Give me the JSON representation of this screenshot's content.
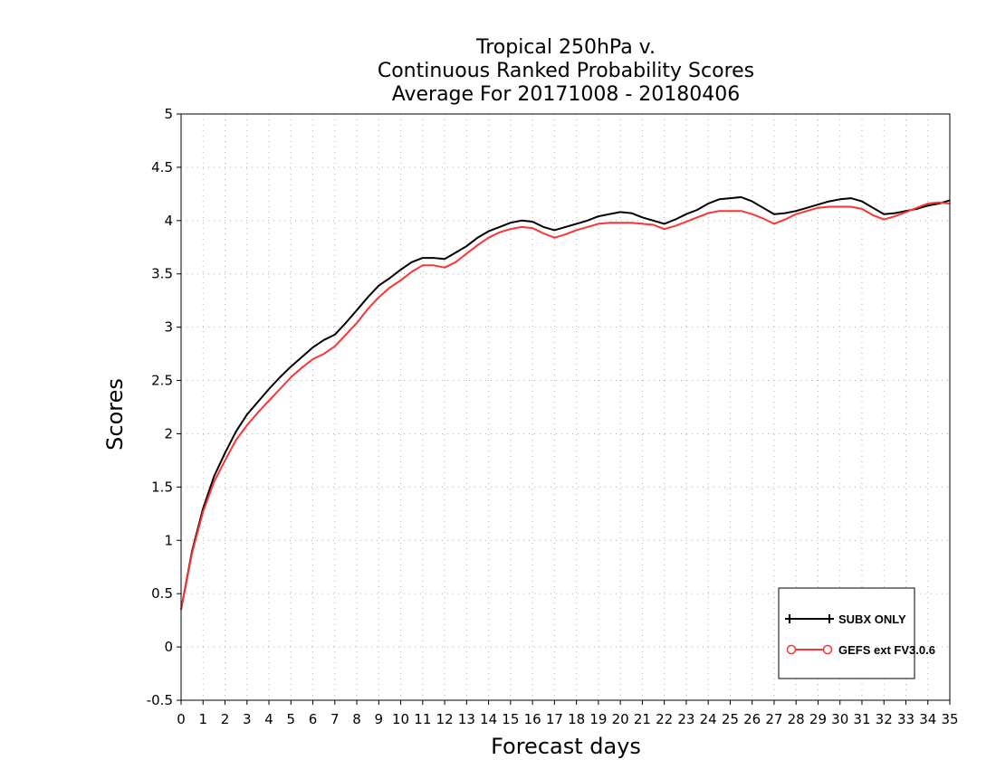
{
  "chart_data": {
    "type": "line",
    "title": [
      "Tropical 250hPa v.",
      "Continuous Ranked Probability Scores",
      "Average For 20171008 - 20180406"
    ],
    "xlabel": "Forecast days",
    "ylabel": "Scores",
    "xlim": [
      0,
      35
    ],
    "ylim": [
      -0.5,
      5
    ],
    "xticks": [
      0,
      1,
      2,
      3,
      4,
      5,
      6,
      7,
      8,
      9,
      10,
      11,
      12,
      13,
      14,
      15,
      16,
      17,
      18,
      19,
      20,
      21,
      22,
      23,
      24,
      25,
      26,
      27,
      28,
      29,
      30,
      31,
      32,
      33,
      34,
      35
    ],
    "yticks": [
      -0.5,
      0,
      0.5,
      1,
      1.5,
      2,
      2.5,
      3,
      3.5,
      4,
      4.5,
      5
    ],
    "ytick_labels": [
      "-0.5",
      "0",
      "0.5",
      "1",
      "1.5",
      "2",
      "2.5",
      "3",
      "3.5",
      "4",
      "4.5",
      "5"
    ],
    "grid": true,
    "legend_position": "bottom-right",
    "x": [
      0,
      0.5,
      1,
      1.5,
      2,
      2.5,
      3,
      3.5,
      4,
      4.5,
      5,
      5.5,
      6,
      6.5,
      7,
      7.5,
      8,
      8.5,
      9,
      9.5,
      10,
      10.5,
      11,
      11.5,
      12,
      12.5,
      13,
      13.5,
      14,
      14.5,
      15,
      15.5,
      16,
      16.5,
      17,
      17.5,
      18,
      18.5,
      19,
      19.5,
      20,
      20.5,
      21,
      21.5,
      22,
      22.5,
      23,
      23.5,
      24,
      24.5,
      25,
      25.5,
      26,
      26.5,
      27,
      27.5,
      28,
      28.5,
      29,
      29.5,
      30,
      30.5,
      31,
      31.5,
      32,
      32.5,
      33,
      33.5,
      34,
      34.5,
      35
    ],
    "series": [
      {
        "name": "SUBX ONLY",
        "color": "#000000",
        "marker": "plus",
        "values": [
          0.35,
          0.9,
          1.3,
          1.6,
          1.82,
          2.02,
          2.18,
          2.3,
          2.42,
          2.53,
          2.63,
          2.72,
          2.81,
          2.88,
          2.93,
          3.04,
          3.16,
          3.28,
          3.39,
          3.46,
          3.54,
          3.61,
          3.65,
          3.65,
          3.64,
          3.7,
          3.76,
          3.84,
          3.9,
          3.94,
          3.98,
          4.0,
          3.99,
          3.94,
          3.91,
          3.94,
          3.97,
          4.0,
          4.04,
          4.06,
          4.08,
          4.07,
          4.03,
          4.0,
          3.97,
          4.01,
          4.06,
          4.1,
          4.16,
          4.2,
          4.21,
          4.22,
          4.18,
          4.12,
          4.06,
          4.07,
          4.09,
          4.12,
          4.15,
          4.18,
          4.2,
          4.21,
          4.18,
          4.12,
          4.06,
          4.07,
          4.09,
          4.11,
          4.14,
          4.16,
          4.19
        ]
      },
      {
        "name": "GEFS ext FV3.0.6",
        "color": "#ff3333",
        "marker": "circle",
        "values": [
          0.35,
          0.88,
          1.27,
          1.55,
          1.75,
          1.94,
          2.08,
          2.2,
          2.31,
          2.42,
          2.53,
          2.62,
          2.7,
          2.75,
          2.82,
          2.93,
          3.04,
          3.17,
          3.28,
          3.37,
          3.44,
          3.52,
          3.58,
          3.58,
          3.56,
          3.61,
          3.69,
          3.77,
          3.84,
          3.89,
          3.92,
          3.94,
          3.93,
          3.88,
          3.84,
          3.87,
          3.91,
          3.94,
          3.97,
          3.98,
          3.98,
          3.98,
          3.97,
          3.96,
          3.92,
          3.95,
          3.99,
          4.03,
          4.07,
          4.09,
          4.09,
          4.09,
          4.06,
          4.02,
          3.97,
          4.01,
          4.06,
          4.09,
          4.12,
          4.13,
          4.13,
          4.13,
          4.11,
          4.05,
          4.01,
          4.04,
          4.08,
          4.12,
          4.16,
          4.17,
          4.16
        ]
      }
    ]
  }
}
